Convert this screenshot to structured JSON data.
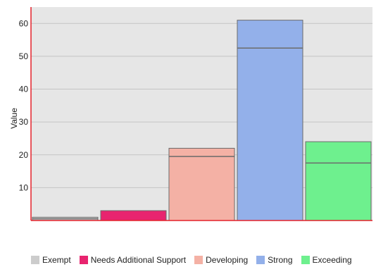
{
  "chart_data": {
    "type": "bar",
    "ylabel": "Value",
    "xlabel": "",
    "ylim": [
      0,
      65
    ],
    "yticks": [
      10,
      20,
      30,
      40,
      50,
      60
    ],
    "grid": true,
    "legend_position": "bottom",
    "categories": [
      "Exempt",
      "Needs Additional Support",
      "Developing",
      "Strong",
      "Exceeding"
    ],
    "series": [
      {
        "name": "Exempt",
        "color": "#cccccc",
        "bar_index": 0
      },
      {
        "name": "Needs Additional Support",
        "color": "#e8246f",
        "bar_index": 1
      },
      {
        "name": "Developing",
        "color": "#f4b1a5",
        "bar_index": 2
      },
      {
        "name": "Strong",
        "color": "#93b0ea",
        "bar_index": 3
      },
      {
        "name": "Exceeding",
        "color": "#6ef08e",
        "bar_index": 4
      }
    ],
    "bars": [
      {
        "category": "Exempt",
        "total": 1,
        "inner": 0.5
      },
      {
        "category": "Needs Additional Support",
        "total": 3,
        "inner": 0
      },
      {
        "category": "Developing",
        "total": 22,
        "inner": 19.5
      },
      {
        "category": "Strong",
        "total": 61,
        "inner": 52.5
      },
      {
        "category": "Exceeding",
        "total": 24,
        "inner": 17.5
      }
    ],
    "colors": {
      "plot_background": "#e6e6e6",
      "gridline": "#c4c4c4",
      "axis_line": "#e4202a",
      "bar_outline": "#6b6b6b"
    }
  }
}
